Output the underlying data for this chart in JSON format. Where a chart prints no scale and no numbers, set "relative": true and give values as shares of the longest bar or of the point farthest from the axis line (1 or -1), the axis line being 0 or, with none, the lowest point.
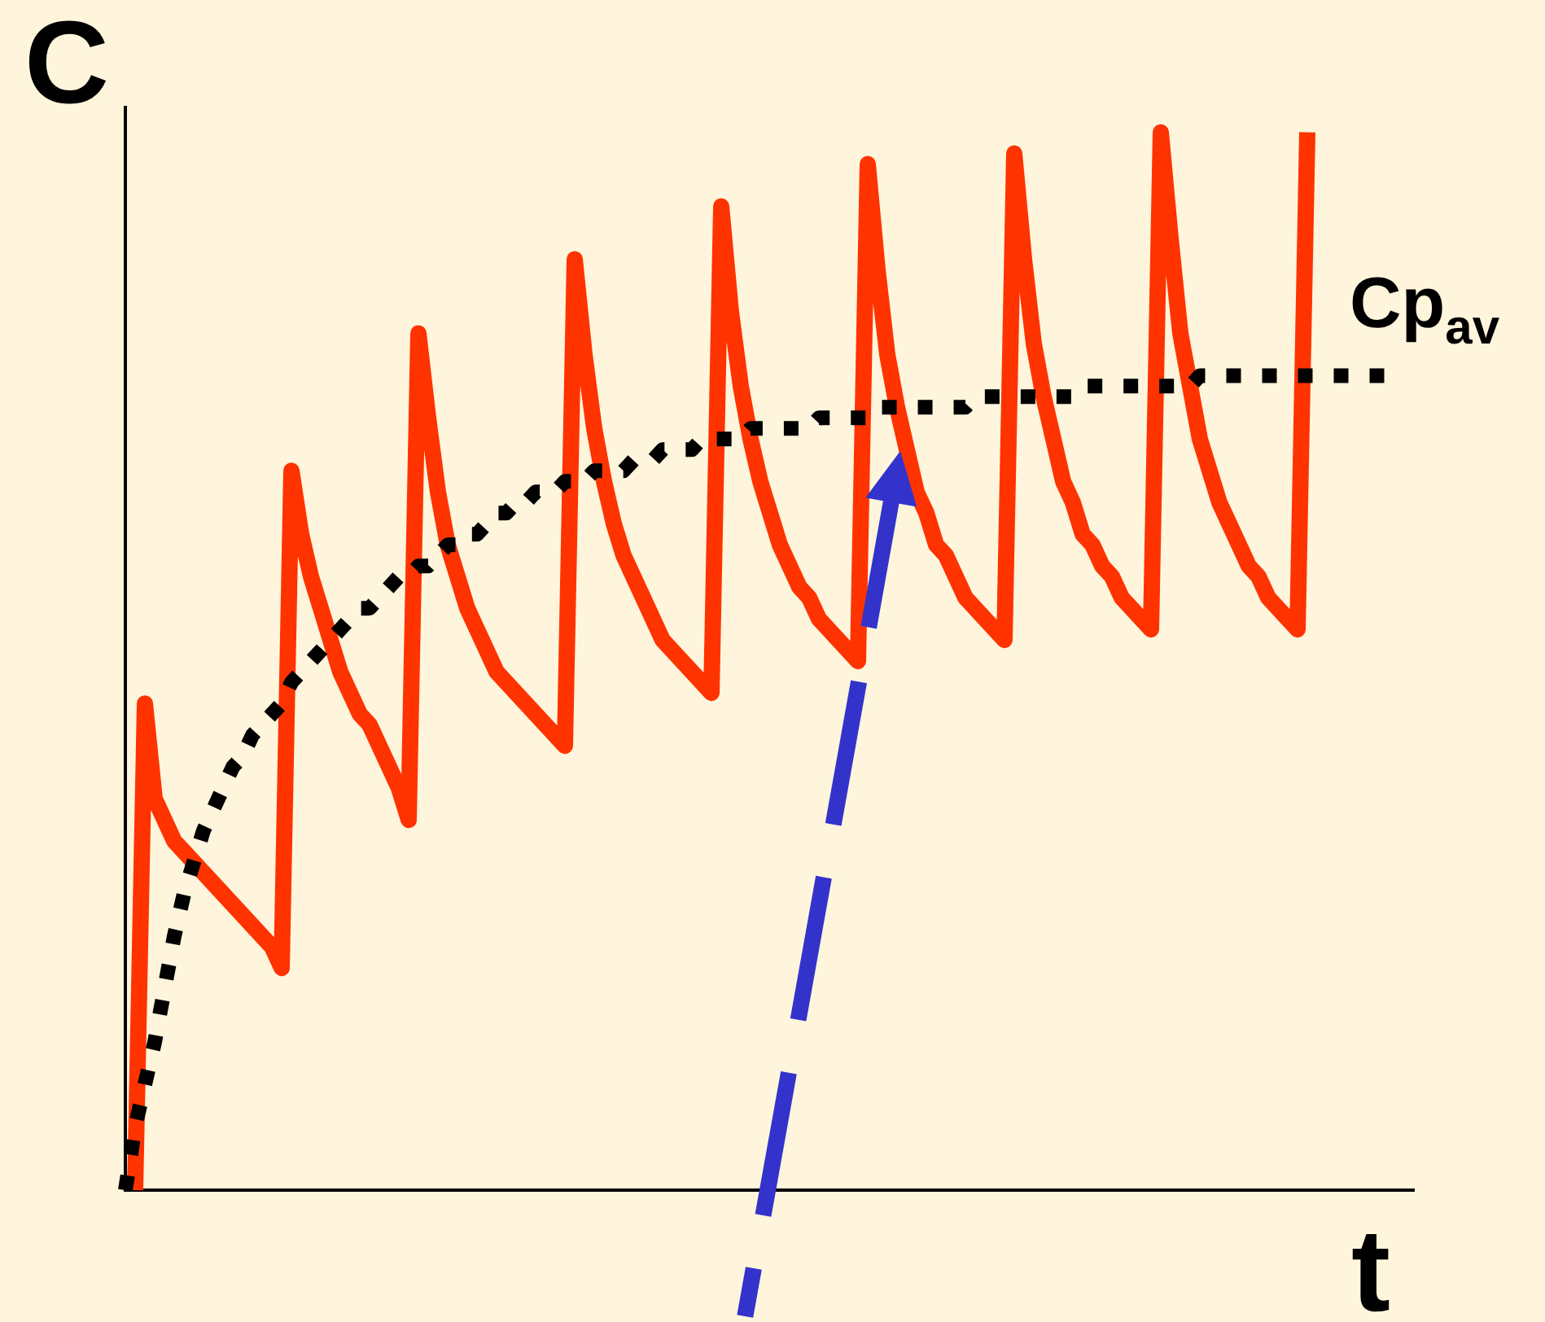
{
  "chart_data": {
    "type": "line",
    "relative": true,
    "xlabel": "t",
    "ylabel": "C",
    "categories": [
      null,
      null,
      null,
      null,
      null,
      null,
      null,
      null,
      null,
      null,
      null,
      null,
      null,
      null,
      null,
      null,
      null,
      null,
      null,
      null,
      null,
      null,
      null,
      null,
      null,
      null,
      null,
      null,
      null,
      null,
      null,
      null,
      null,
      null,
      null,
      null,
      null,
      null,
      null,
      null,
      null,
      null,
      null,
      null,
      null,
      null,
      null,
      null,
      null,
      null,
      null,
      null,
      null,
      null,
      null,
      null,
      null,
      null,
      null,
      null,
      null,
      null,
      null,
      null,
      null,
      null,
      null,
      null,
      null,
      null,
      null,
      null,
      null,
      null,
      null,
      null,
      null,
      null,
      null,
      null,
      null,
      null,
      null,
      null,
      null,
      null,
      null,
      null,
      null,
      null,
      null,
      null,
      null,
      null,
      null,
      null,
      null,
      null,
      null,
      null,
      null,
      null,
      null,
      null,
      null,
      null,
      null,
      null,
      null,
      null,
      null,
      null,
      null,
      null,
      null,
      null,
      null,
      null,
      null,
      null,
      null,
      null,
      null,
      null,
      null,
      null,
      null,
      null,
      null,
      null,
      null,
      null,
      null
    ],
    "series": [
      {
        "color": "#ff3300",
        "values": [
          null,
          0,
          0.46,
          0.37,
          0.35,
          0.33,
          0.32,
          0.31,
          0.3,
          0.29,
          0.28,
          0.27,
          0.26,
          0.25,
          0.24,
          0.23,
          0.21,
          0.68,
          0.62,
          0.58,
          0.55,
          0.52,
          0.49,
          0.47,
          0.45,
          0.44,
          0.42,
          0.4,
          0.38,
          0.35,
          0.81,
          0.73,
          0.66,
          0.61,
          0.58,
          0.55,
          0.53,
          0.51,
          0.49,
          0.48,
          0.47,
          0.46,
          0.45,
          0.44,
          0.43,
          0.42,
          0.88,
          0.79,
          0.72,
          0.67,
          0.63,
          0.6,
          0.58,
          0.56,
          0.54,
          0.52,
          0.51,
          0.5,
          0.49,
          0.48,
          0.47,
          0.93,
          0.83,
          0.76,
          0.71,
          0.67,
          0.64,
          0.61,
          0.59,
          0.57,
          0.56,
          0.54,
          0.53,
          0.52,
          0.51,
          0.5,
          0.97,
          0.87,
          0.79,
          0.74,
          0.7,
          0.66,
          0.64,
          0.61,
          0.6,
          0.58,
          0.56,
          0.55,
          0.54,
          0.53,
          0.52,
          0.98,
          0.88,
          0.8,
          0.75,
          0.71,
          0.67,
          0.65,
          0.62,
          0.61,
          0.59,
          0.58,
          0.56,
          0.55,
          0.54,
          0.53,
          1,
          0.9,
          0.81,
          0.76,
          0.71,
          0.68,
          0.65,
          0.63,
          0.61,
          0.59,
          0.58,
          0.56,
          0.55,
          0.54,
          0.53,
          1,
          null,
          null,
          null,
          null,
          null,
          null,
          null,
          null,
          null,
          null,
          null
        ]
      },
      {
        "name": "Cp$_{av}$",
        "color": "#000000",
        "line_style": "dotted",
        "values": [
          0,
          0.06,
          0.1,
          0.14,
          0.19,
          0.24,
          0.28,
          0.31,
          0.34,
          0.36,
          0.38,
          0.4,
          0.41,
          0.43,
          0.44,
          0.45,
          0.46,
          0.48,
          0.49,
          0.5,
          0.51,
          0.52,
          0.53,
          0.54,
          0.55,
          0.55,
          0.56,
          0.57,
          0.58,
          0.58,
          0.59,
          0.59,
          0.6,
          0.61,
          0.61,
          0.62,
          0.62,
          0.63,
          0.64,
          0.64,
          0.65,
          0.65,
          0.66,
          0.66,
          0.66,
          0.67,
          0.67,
          0.67,
          0.68,
          0.68,
          0.68,
          0.68,
          0.69,
          0.69,
          0.69,
          0.7,
          0.7,
          0.7,
          0.7,
          0.71,
          0.71,
          0.71,
          0.71,
          0.71,
          0.72,
          0.72,
          0.72,
          0.72,
          0.72,
          0.72,
          0.72,
          0.73,
          0.73,
          0.73,
          0.73,
          0.73,
          0.73,
          0.74,
          0.74,
          0.74,
          0.74,
          0.74,
          0.74,
          0.74,
          0.74,
          0.74,
          0.74,
          0.75,
          0.75,
          0.75,
          0.75,
          0.75,
          0.75,
          0.75,
          0.75,
          0.75,
          0.75,
          0.75,
          0.76,
          0.76,
          0.76,
          0.76,
          0.76,
          0.76,
          0.76,
          0.76,
          0.76,
          0.76,
          0.76,
          0.76,
          0.77,
          0.77,
          0.77,
          0.77,
          0.77,
          0.77,
          0.77,
          0.77,
          0.77,
          0.77,
          0.77,
          0.77,
          0.77,
          0.77,
          0.77,
          0.77,
          0.77,
          0.77,
          0.77,
          0.77,
          null,
          null,
          null
        ]
      }
    ]
  }
}
